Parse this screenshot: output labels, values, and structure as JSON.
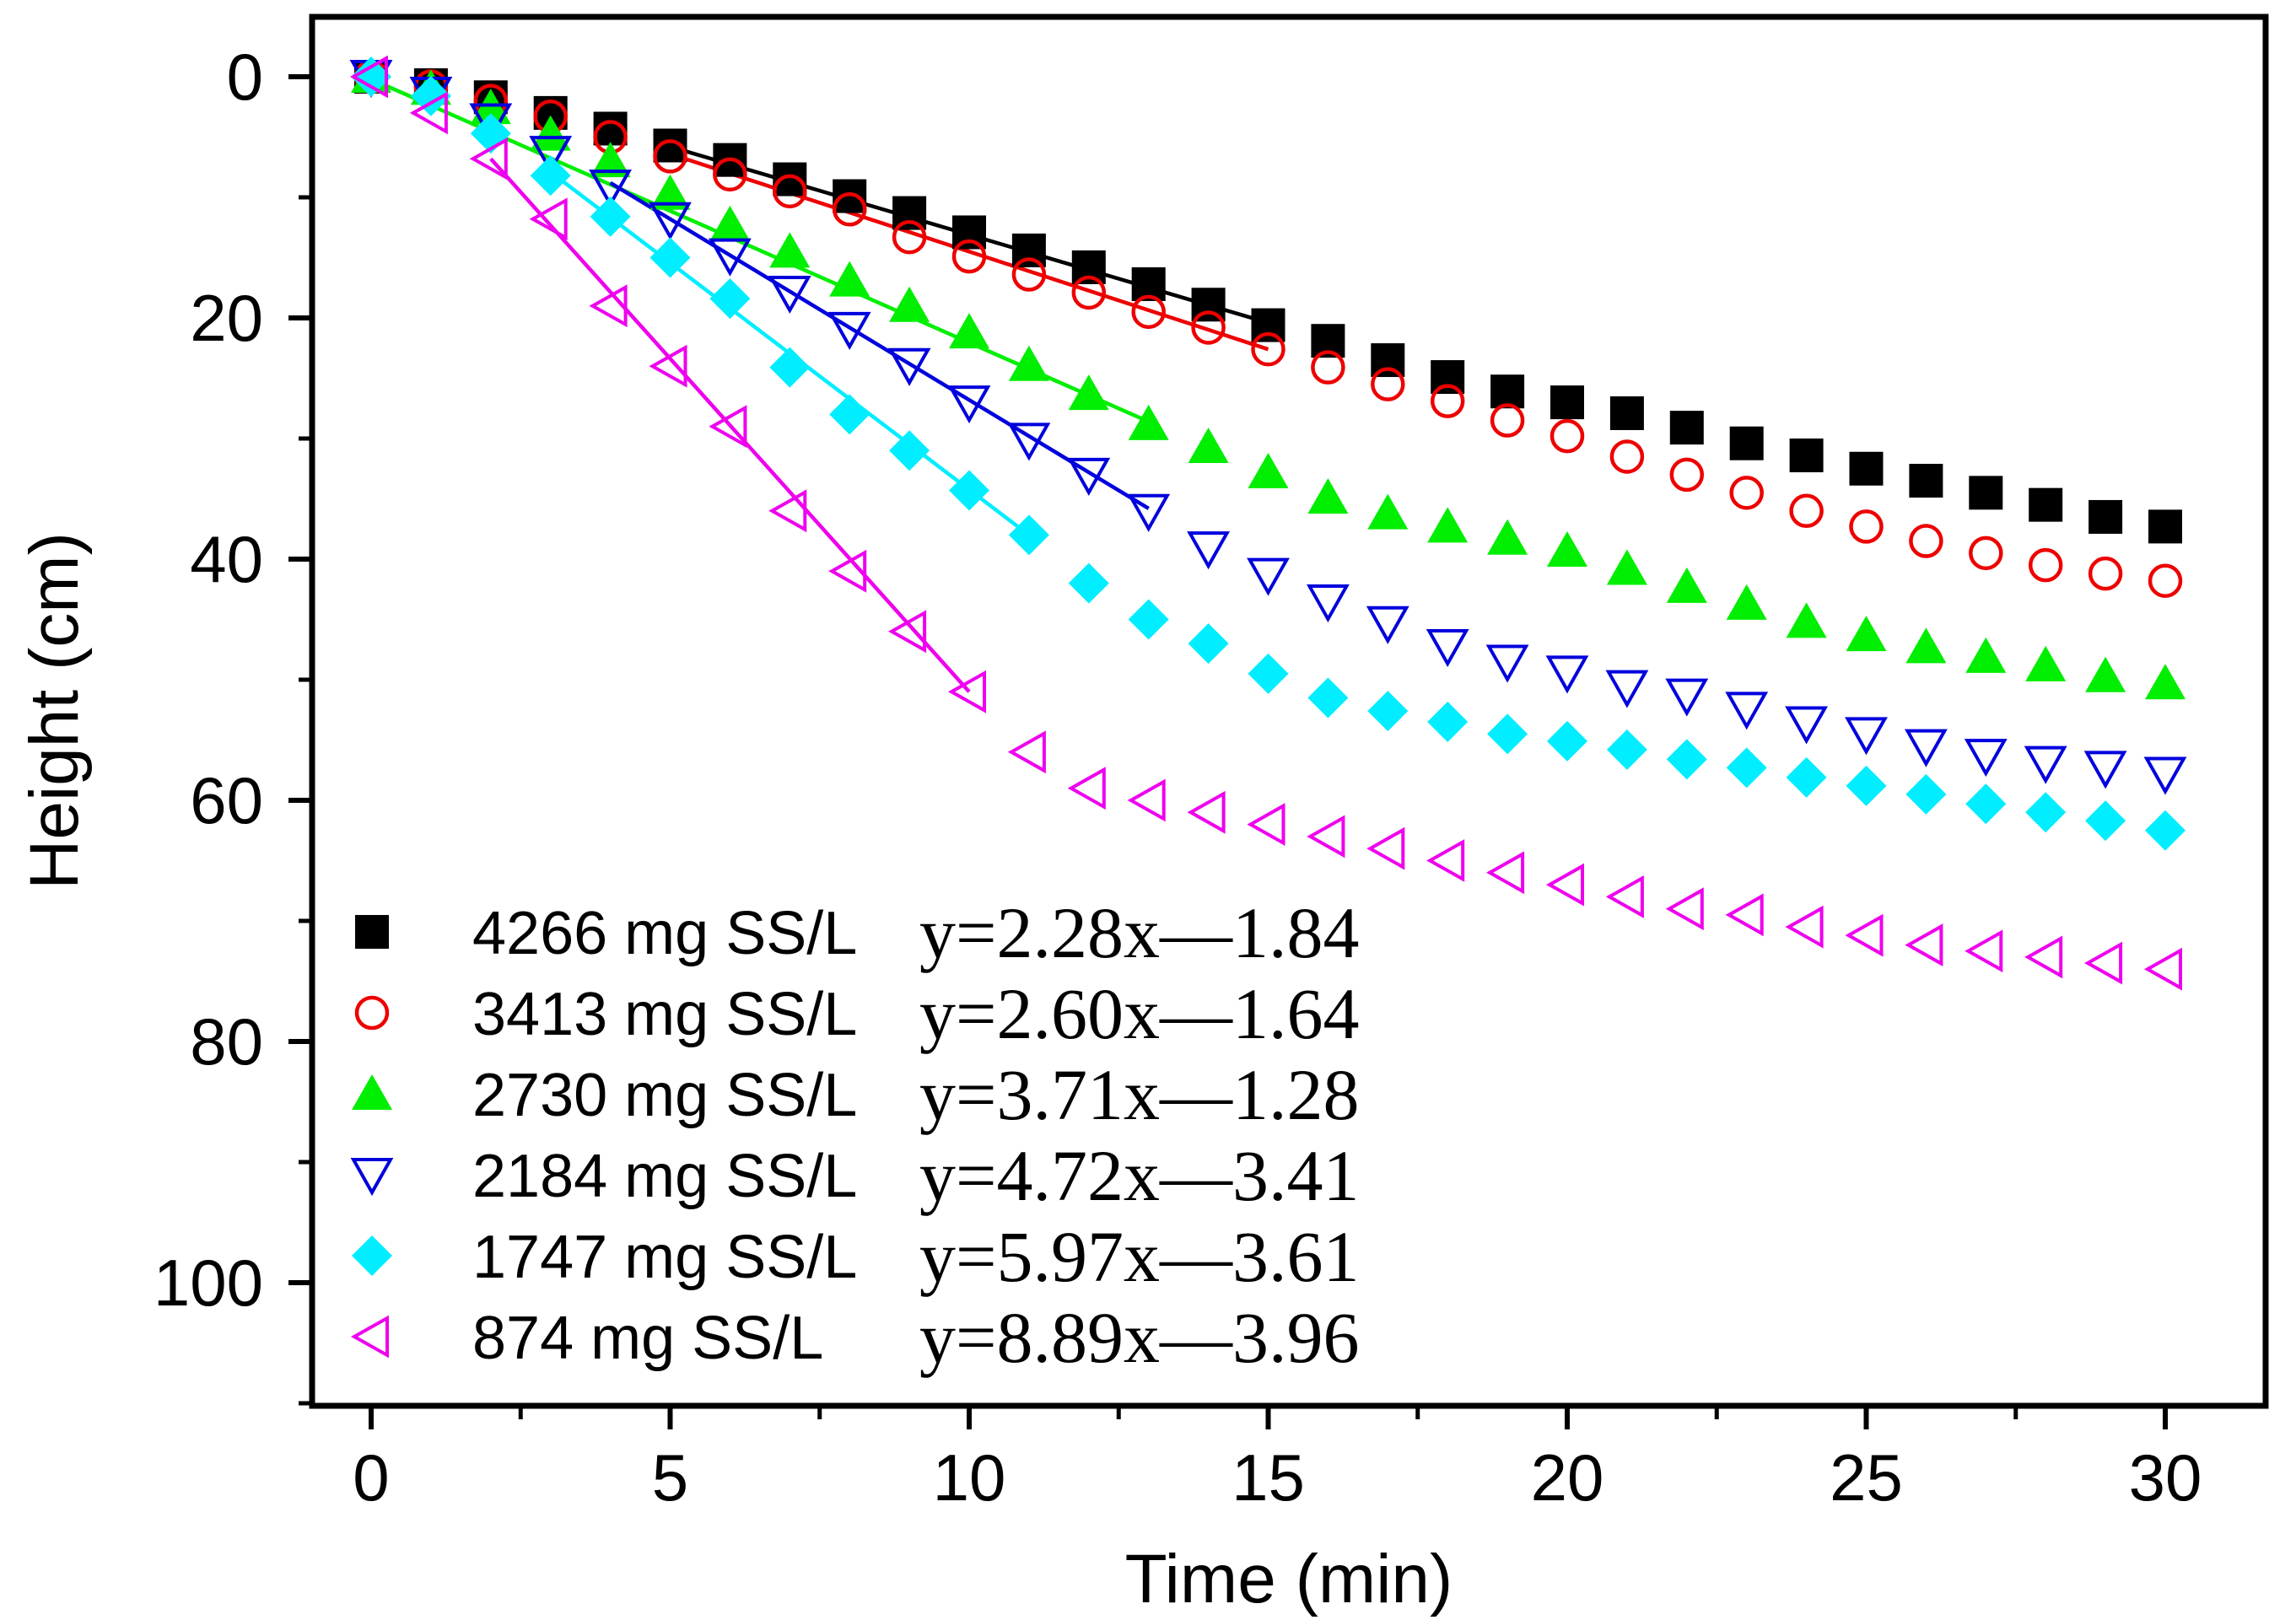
{
  "chart_data": {
    "type": "scatter",
    "title": "",
    "xlabel": "Time (min)",
    "ylabel": "Height (cm)",
    "xlim": [
      -1,
      32
    ],
    "ylim": [
      0,
      110
    ],
    "y_inverted": true,
    "xticks": [
      0,
      5,
      10,
      15,
      20,
      25,
      30
    ],
    "yticks": [
      0,
      20,
      40,
      60,
      80,
      100
    ],
    "grid": false,
    "legend_position": "bottom-left",
    "series": [
      {
        "name": "4266 mg SS/L",
        "equation": "y=2.28x—1.84",
        "marker": "square-filled",
        "color": "#000000",
        "x": [
          0,
          1,
          2,
          3,
          4,
          5,
          6,
          7,
          8,
          9,
          10,
          11,
          12,
          13,
          14,
          15,
          16,
          17,
          18,
          19,
          20,
          21,
          22,
          23,
          24,
          25,
          26,
          27,
          28,
          29,
          30
        ],
        "y": [
          0,
          0.7,
          1.7,
          3.0,
          4.3,
          5.7,
          6.9,
          8.5,
          9.9,
          11.3,
          12.9,
          14.4,
          15.8,
          17.2,
          18.9,
          20.6,
          21.9,
          23.5,
          24.9,
          26.1,
          27.0,
          27.9,
          29.1,
          30.4,
          31.4,
          32.5,
          33.5,
          34.5,
          35.5,
          36.5,
          37.3
        ],
        "fit": {
          "x": [
            5,
            15
          ],
          "y": [
            5.8,
            20.4
          ]
        }
      },
      {
        "name": "3413 mg SS/L",
        "equation": "y=2.60x—1.64",
        "marker": "circle-open",
        "color": "#ee0000",
        "x": [
          0,
          1,
          2,
          3,
          4,
          5,
          6,
          7,
          8,
          9,
          10,
          11,
          12,
          13,
          14,
          15,
          16,
          17,
          18,
          19,
          20,
          21,
          22,
          23,
          24,
          25,
          26,
          27,
          28,
          29,
          30
        ],
        "y": [
          0,
          0.8,
          2.0,
          3.3,
          5.0,
          6.6,
          8.1,
          9.5,
          11.0,
          13.3,
          14.9,
          16.4,
          17.9,
          19.5,
          20.8,
          22.6,
          24.1,
          25.5,
          26.9,
          28.5,
          29.8,
          31.5,
          33.0,
          34.5,
          36.0,
          37.3,
          38.5,
          39.5,
          40.5,
          41.2,
          41.8
        ],
        "fit": {
          "x": [
            5,
            15
          ],
          "y": [
            6.4,
            22.6
          ]
        }
      },
      {
        "name": "2730 mg SS/L",
        "equation": "y=3.71x—1.28",
        "marker": "triangle-up-filled",
        "color": "#00ee00",
        "x": [
          0,
          1,
          2,
          3,
          4,
          5,
          6,
          7,
          8,
          9,
          10,
          11,
          12,
          13,
          14,
          15,
          16,
          17,
          18,
          19,
          20,
          21,
          22,
          23,
          24,
          25,
          26,
          27,
          28,
          29,
          30
        ],
        "y": [
          0,
          1.0,
          2.6,
          4.8,
          7.0,
          9.7,
          12.3,
          14.5,
          16.9,
          19.0,
          21.2,
          23.9,
          26.3,
          28.8,
          30.7,
          32.8,
          34.9,
          36.2,
          37.3,
          38.3,
          39.3,
          40.8,
          42.3,
          43.7,
          45.2,
          46.3,
          47.3,
          48.1,
          48.8,
          49.7,
          50.3
        ],
        "fit": {
          "x": [
            0,
            13
          ],
          "y": [
            0.2,
            28.6
          ]
        }
      },
      {
        "name": "2184 mg SS/L",
        "equation": "y=4.72x—3.41",
        "marker": "triangle-down-open",
        "color": "#0000dd",
        "x": [
          0,
          1,
          2,
          3,
          4,
          5,
          6,
          7,
          8,
          9,
          10,
          11,
          12,
          13,
          14,
          15,
          16,
          17,
          18,
          19,
          20,
          21,
          22,
          23,
          24,
          25,
          26,
          27,
          28,
          29,
          30
        ],
        "y": [
          0,
          1.4,
          3.6,
          6.3,
          9.1,
          11.8,
          14.8,
          17.9,
          20.9,
          23.9,
          27.0,
          30.1,
          33.0,
          36.0,
          39.1,
          41.3,
          43.5,
          45.3,
          47.2,
          48.5,
          49.4,
          50.6,
          51.3,
          52.4,
          53.6,
          54.5,
          55.5,
          56.3,
          56.9,
          57.3,
          57.8
        ],
        "fit": {
          "x": [
            4,
            13
          ],
          "y": [
            8.8,
            35.8
          ]
        }
      },
      {
        "name": "1747 mg SS/L",
        "equation": "y=5.97x—3.61",
        "marker": "diamond-filled",
        "color": "#00eeff",
        "x": [
          0,
          1,
          2,
          3,
          4,
          5,
          6,
          7,
          8,
          9,
          10,
          11,
          12,
          13,
          14,
          15,
          16,
          17,
          18,
          19,
          20,
          21,
          22,
          23,
          24,
          25,
          26,
          27,
          28,
          29,
          30
        ],
        "y": [
          0,
          1.6,
          4.7,
          8.2,
          11.6,
          15.0,
          18.4,
          24.1,
          28.0,
          31.0,
          34.3,
          38.0,
          42.0,
          45.0,
          47.0,
          49.5,
          51.5,
          52.6,
          53.5,
          54.5,
          55.1,
          55.8,
          56.6,
          57.3,
          58.1,
          58.8,
          59.5,
          60.3,
          61.0,
          61.7,
          62.5
        ],
        "fit": {
          "x": [
            3,
            11
          ],
          "y": [
            7.9,
            38.0
          ]
        }
      },
      {
        "name": "874 mg SS/L",
        "equation": "y=8.89x—3.96",
        "marker": "triangle-left-open",
        "color": "#ee00ee",
        "x": [
          0,
          1,
          2,
          3,
          4,
          5,
          6,
          7,
          8,
          9,
          10,
          11,
          12,
          13,
          14,
          15,
          16,
          17,
          18,
          19,
          20,
          21,
          22,
          23,
          24,
          25,
          26,
          27,
          28,
          29,
          30
        ],
        "y": [
          0,
          3.0,
          6.8,
          11.8,
          19.0,
          24.0,
          29.0,
          36.0,
          41.0,
          46.0,
          51.0,
          56.0,
          59.0,
          60.0,
          61.0,
          62.0,
          63.0,
          64.0,
          65.0,
          66.0,
          67.0,
          68.0,
          69.0,
          69.5,
          70.5,
          71.2,
          72.0,
          72.5,
          73.0,
          73.5,
          74.0
        ],
        "fit": {
          "x": [
            2,
            10
          ],
          "y": [
            6.8,
            51.0
          ]
        }
      }
    ]
  }
}
